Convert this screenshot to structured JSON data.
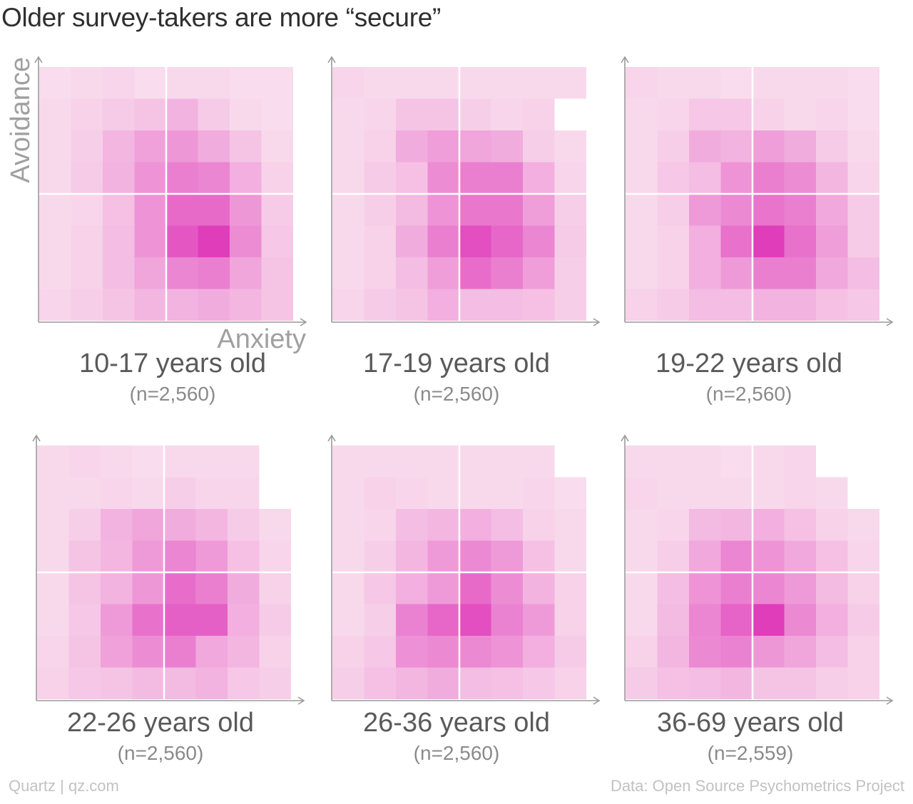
{
  "title": "Older survey-takers are more “secure”",
  "footer": {
    "source_left": "Quartz | qz.com",
    "source_right": "Data: Open Source Psychometrics Project"
  },
  "colors": {
    "low": "#fbeaf1",
    "high": "#e03dbb",
    "axis": "#9a9a9a",
    "divider": "#ffffff",
    "label": "#5a5a5a",
    "sublabel": "#8a8a8a",
    "axis_title": "#a0a0a0"
  },
  "chart_data": [
    {
      "type": "heatmap",
      "title": "10-17 years old",
      "subtitle": "(n=2,560)",
      "xlabel": "Anxiety",
      "ylabel": "Avoidance",
      "grid_size": [
        8,
        8
      ],
      "values": [
        [
          0.08,
          0.1,
          0.12,
          0.08,
          0.1,
          0.1,
          0.08,
          0.08
        ],
        [
          0.1,
          0.14,
          0.18,
          0.22,
          0.32,
          0.18,
          0.1,
          0.08
        ],
        [
          0.1,
          0.16,
          0.3,
          0.42,
          0.48,
          0.36,
          0.22,
          0.1
        ],
        [
          0.1,
          0.18,
          0.32,
          0.5,
          0.62,
          0.58,
          0.34,
          0.14
        ],
        [
          0.1,
          0.12,
          0.24,
          0.5,
          0.74,
          0.74,
          0.48,
          0.18
        ],
        [
          0.1,
          0.14,
          0.26,
          0.5,
          0.85,
          1.0,
          0.54,
          0.2
        ],
        [
          0.1,
          0.14,
          0.26,
          0.4,
          0.58,
          0.62,
          0.4,
          0.22
        ],
        [
          0.12,
          0.16,
          0.22,
          0.3,
          0.32,
          0.36,
          0.3,
          0.22
        ]
      ]
    },
    {
      "type": "heatmap",
      "title": "17-19 years old",
      "subtitle": "(n=2,560)",
      "xlabel": "",
      "ylabel": "",
      "grid_size": [
        8,
        8
      ],
      "values": [
        [
          0.12,
          0.1,
          0.1,
          0.1,
          0.1,
          0.1,
          0.1,
          0.1
        ],
        [
          0.1,
          0.12,
          0.22,
          0.22,
          0.16,
          0.12,
          0.14,
          null
        ],
        [
          0.1,
          0.14,
          0.36,
          0.44,
          0.4,
          0.36,
          0.16,
          0.1
        ],
        [
          0.1,
          0.18,
          0.24,
          0.54,
          0.62,
          0.62,
          0.34,
          0.12
        ],
        [
          0.1,
          0.16,
          0.28,
          0.5,
          0.66,
          0.66,
          0.44,
          0.16
        ],
        [
          0.1,
          0.14,
          0.36,
          0.62,
          0.9,
          0.76,
          0.58,
          0.18
        ],
        [
          0.1,
          0.14,
          0.26,
          0.44,
          0.72,
          0.62,
          0.44,
          0.16
        ],
        [
          0.12,
          0.18,
          0.22,
          0.34,
          0.26,
          0.26,
          0.24,
          0.16
        ]
      ]
    },
    {
      "type": "heatmap",
      "title": "19-22 years old",
      "subtitle": "(n=2,560)",
      "xlabel": "",
      "ylabel": "",
      "grid_size": [
        8,
        8
      ],
      "values": [
        [
          0.12,
          0.1,
          0.1,
          0.08,
          0.1,
          0.1,
          0.1,
          0.08
        ],
        [
          0.1,
          0.12,
          0.2,
          0.2,
          0.14,
          0.1,
          0.12,
          0.08
        ],
        [
          0.1,
          0.16,
          0.36,
          0.32,
          0.44,
          0.36,
          0.18,
          0.1
        ],
        [
          0.1,
          0.2,
          0.26,
          0.5,
          0.62,
          0.54,
          0.3,
          0.12
        ],
        [
          0.1,
          0.16,
          0.46,
          0.56,
          0.68,
          0.62,
          0.38,
          0.18
        ],
        [
          0.1,
          0.14,
          0.34,
          0.7,
          1.0,
          0.7,
          0.44,
          0.18
        ],
        [
          0.1,
          0.14,
          0.34,
          0.46,
          0.62,
          0.62,
          0.38,
          0.26
        ],
        [
          0.14,
          0.18,
          0.26,
          0.26,
          0.32,
          0.32,
          0.24,
          0.2
        ]
      ]
    },
    {
      "type": "heatmap",
      "title": "22-26 years old",
      "subtitle": "(n=2,560)",
      "xlabel": "",
      "ylabel": "",
      "grid_size": [
        8,
        8
      ],
      "values": [
        [
          0.1,
          0.12,
          0.1,
          0.08,
          0.1,
          0.1,
          0.1,
          null
        ],
        [
          0.1,
          0.1,
          0.12,
          0.1,
          0.16,
          0.12,
          0.12,
          null
        ],
        [
          0.1,
          0.16,
          0.32,
          0.4,
          0.36,
          0.3,
          0.18,
          0.1
        ],
        [
          0.1,
          0.22,
          0.3,
          0.46,
          0.58,
          0.46,
          0.24,
          0.12
        ],
        [
          0.1,
          0.22,
          0.32,
          0.48,
          0.72,
          0.62,
          0.36,
          0.14
        ],
        [
          0.1,
          0.2,
          0.46,
          0.7,
          0.8,
          0.8,
          0.34,
          0.18
        ],
        [
          0.12,
          0.22,
          0.42,
          0.54,
          0.62,
          0.38,
          0.3,
          0.14
        ],
        [
          0.14,
          0.2,
          0.22,
          0.28,
          0.28,
          0.32,
          0.2,
          0.16
        ]
      ]
    },
    {
      "type": "heatmap",
      "title": "26-36 years old",
      "subtitle": "(n=2,560)",
      "xlabel": "",
      "ylabel": "",
      "grid_size": [
        8,
        8
      ],
      "values": [
        [
          0.1,
          0.1,
          0.1,
          0.1,
          0.1,
          0.1,
          0.1,
          null
        ],
        [
          0.1,
          0.14,
          0.12,
          0.1,
          0.1,
          0.1,
          0.12,
          0.08
        ],
        [
          0.1,
          0.12,
          0.26,
          0.3,
          0.34,
          0.26,
          0.14,
          0.1
        ],
        [
          0.1,
          0.16,
          0.3,
          0.46,
          0.56,
          0.46,
          0.24,
          0.1
        ],
        [
          0.1,
          0.2,
          0.34,
          0.46,
          0.74,
          0.54,
          0.32,
          0.14
        ],
        [
          0.1,
          0.16,
          0.6,
          0.76,
          0.9,
          0.6,
          0.46,
          0.14
        ],
        [
          0.14,
          0.2,
          0.52,
          0.56,
          0.56,
          0.5,
          0.34,
          0.18
        ],
        [
          0.16,
          0.24,
          0.3,
          0.36,
          0.26,
          0.24,
          0.2,
          0.14
        ]
      ]
    },
    {
      "type": "heatmap",
      "title": "36-69 years old",
      "subtitle": "(n=2,559)",
      "xlabel": "",
      "ylabel": "",
      "grid_size": [
        8,
        8
      ],
      "values": [
        [
          0.1,
          0.1,
          0.1,
          0.08,
          0.1,
          0.12,
          null,
          null
        ],
        [
          0.12,
          0.1,
          0.1,
          0.1,
          0.1,
          0.12,
          0.1,
          null
        ],
        [
          0.1,
          0.12,
          0.28,
          0.3,
          0.34,
          0.24,
          0.14,
          0.1
        ],
        [
          0.1,
          0.16,
          0.38,
          0.58,
          0.5,
          0.38,
          0.24,
          0.12
        ],
        [
          0.1,
          0.26,
          0.5,
          0.62,
          0.58,
          0.46,
          0.28,
          0.14
        ],
        [
          0.1,
          0.28,
          0.58,
          0.78,
          1.0,
          0.56,
          0.34,
          0.18
        ],
        [
          0.14,
          0.3,
          0.56,
          0.6,
          0.48,
          0.4,
          0.26,
          0.14
        ],
        [
          0.18,
          0.24,
          0.26,
          0.3,
          0.22,
          0.22,
          0.16,
          0.14
        ]
      ]
    }
  ]
}
